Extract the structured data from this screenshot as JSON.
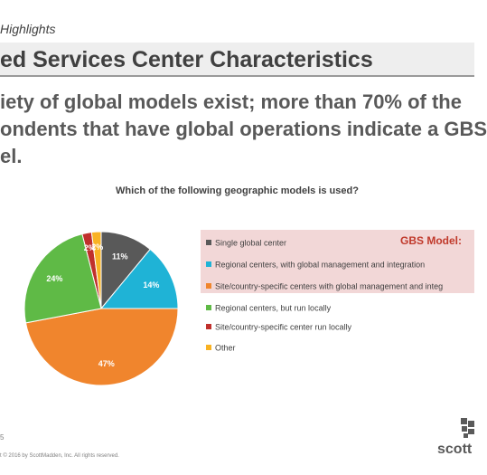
{
  "header": {
    "subhead": "Highlights",
    "title": "ed Services Center Characteristics",
    "body_lines": [
      "iety of global models exist; more than 70% of the",
      "ondents that have global operations indicate a GBS",
      "el."
    ]
  },
  "chart_data": {
    "type": "pie",
    "title": "Which of the following geographic models is used?",
    "labels": [
      "Single global center",
      "Regional centers, with global management and integration",
      "Site/country-specific centers with global management and integ",
      "Regional centers, but run locally",
      "Site/country-specific center run locally",
      "Other"
    ],
    "values": [
      11,
      14,
      47,
      24,
      2,
      2
    ],
    "value_labels": [
      "11%",
      "14%",
      "47%",
      "24%",
      "2%",
      "2%"
    ],
    "colors": [
      "#595959",
      "#1fb3d6",
      "#f0852d",
      "#5fba46",
      "#c0302c",
      "#f9b223"
    ],
    "legend_position": "right",
    "gbs_label": "GBS Model:"
  },
  "footer": {
    "page_number": "5",
    "copyright": "t © 2016 by ScottMadden, Inc. All rights reserved.",
    "logo_text": "scott"
  }
}
